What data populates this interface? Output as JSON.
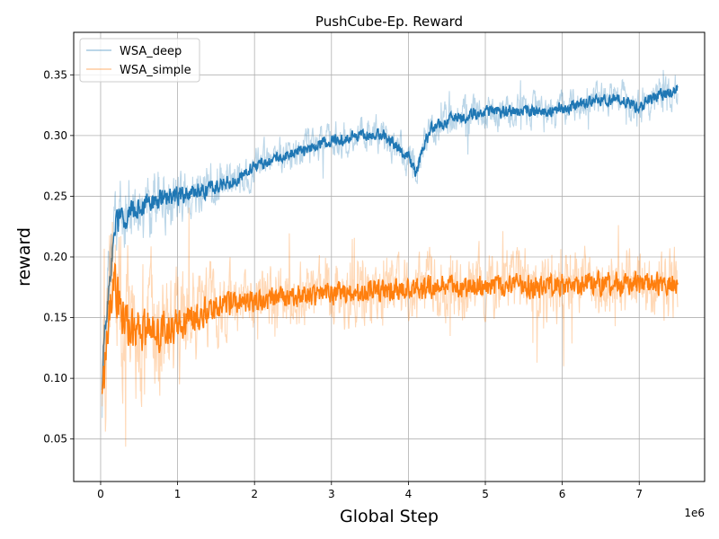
{
  "chart_data": {
    "type": "line",
    "title": "PushCube-Ep. Reward",
    "xlabel": "Global Step",
    "ylabel": "reward",
    "x_offset_label": "1e6",
    "xlim": [
      -0.35,
      7.85
    ],
    "ylim": [
      0.015,
      0.385
    ],
    "xticks": [
      0,
      1,
      2,
      3,
      4,
      5,
      6,
      7
    ],
    "xtick_labels": [
      "0",
      "1",
      "2",
      "3",
      "4",
      "5",
      "6",
      "7"
    ],
    "yticks": [
      0.05,
      0.1,
      0.15,
      0.2,
      0.25,
      0.3,
      0.35
    ],
    "ytick_labels": [
      "0.05",
      "0.10",
      "0.15",
      "0.20",
      "0.25",
      "0.30",
      "0.35"
    ],
    "grid": true,
    "legend_position": "top-left",
    "series": [
      {
        "name": "WSA_deep",
        "color": "#1f77b4",
        "raw_opacity": 0.3,
        "raw_noise": 0.016,
        "smooth_noise": 0.006,
        "x": [
          0.02,
          0.05,
          0.1,
          0.15,
          0.2,
          0.3,
          0.4,
          0.5,
          0.6,
          0.8,
          1.0,
          1.2,
          1.5,
          1.8,
          2.0,
          2.3,
          2.6,
          3.0,
          3.4,
          3.7,
          3.9,
          4.0,
          4.1,
          4.2,
          4.3,
          4.5,
          5.0,
          5.5,
          6.0,
          6.5,
          6.8,
          7.0,
          7.2,
          7.5
        ],
        "y": [
          0.088,
          0.14,
          0.17,
          0.2,
          0.228,
          0.234,
          0.236,
          0.24,
          0.243,
          0.247,
          0.25,
          0.253,
          0.258,
          0.265,
          0.275,
          0.282,
          0.287,
          0.296,
          0.3,
          0.3,
          0.288,
          0.282,
          0.27,
          0.292,
          0.305,
          0.313,
          0.32,
          0.32,
          0.322,
          0.33,
          0.33,
          0.322,
          0.332,
          0.338
        ]
      },
      {
        "name": "WSA_simple",
        "color": "#ff7f0e",
        "raw_opacity": 0.3,
        "raw_noise": 0.03,
        "smooth_noise": 0.011,
        "x": [
          0.02,
          0.05,
          0.1,
          0.15,
          0.2,
          0.3,
          0.4,
          0.6,
          0.8,
          1.0,
          1.2,
          1.5,
          2.0,
          2.5,
          3.0,
          3.5,
          4.0,
          4.5,
          5.0,
          5.5,
          6.0,
          6.5,
          7.0,
          7.5
        ],
        "y": [
          0.087,
          0.1,
          0.14,
          0.17,
          0.175,
          0.15,
          0.14,
          0.138,
          0.14,
          0.145,
          0.15,
          0.16,
          0.163,
          0.167,
          0.17,
          0.172,
          0.173,
          0.175,
          0.176,
          0.177,
          0.177,
          0.178,
          0.178,
          0.178
        ]
      }
    ]
  }
}
